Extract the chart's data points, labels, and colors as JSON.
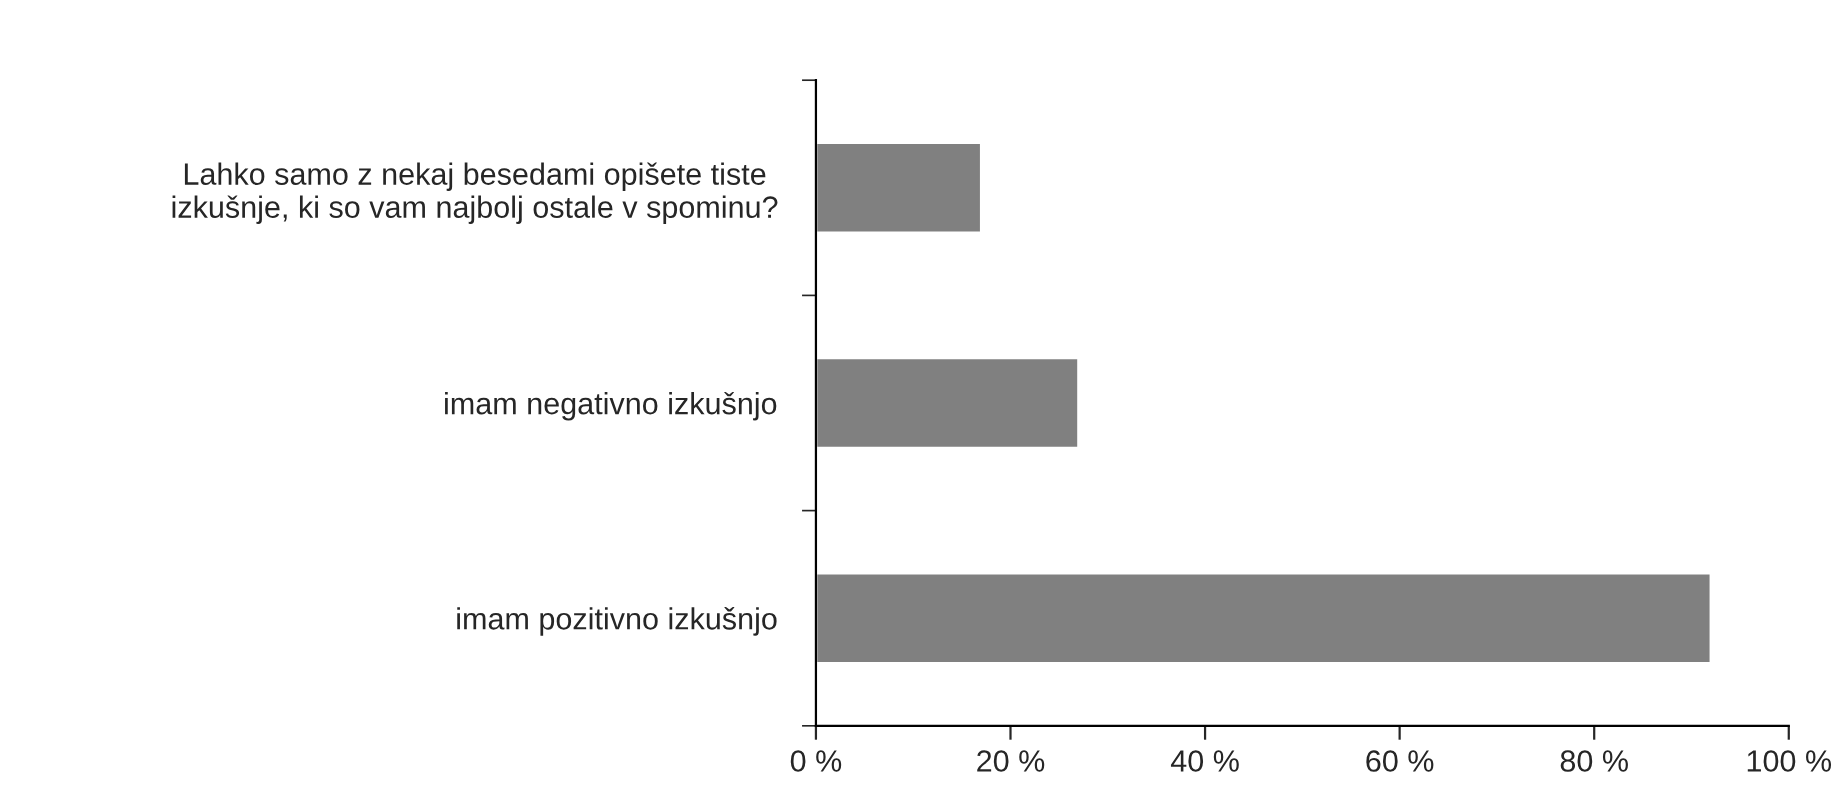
{
  "chart_data": {
    "type": "bar",
    "orientation": "horizontal",
    "categories": [
      "Lahko samo z nekaj besedami opišete tiste\nizkušnje, ki so vam najbolj ostale v spominu?",
      "imam negativno izkušnjo",
      "imam pozitivno izkušnjo"
    ],
    "values": [
      17,
      27,
      92
    ],
    "color": "#808080",
    "xlim": [
      0,
      100
    ],
    "xticks": [
      {
        "value": 0,
        "label": "0 %"
      },
      {
        "value": 20,
        "label": "20 %"
      },
      {
        "value": 40,
        "label": "40 %"
      },
      {
        "value": 60,
        "label": "60 %"
      },
      {
        "value": 80,
        "label": "80 %"
      },
      {
        "value": 100,
        "label": "100 %"
      }
    ],
    "grid": false,
    "legend": false
  }
}
